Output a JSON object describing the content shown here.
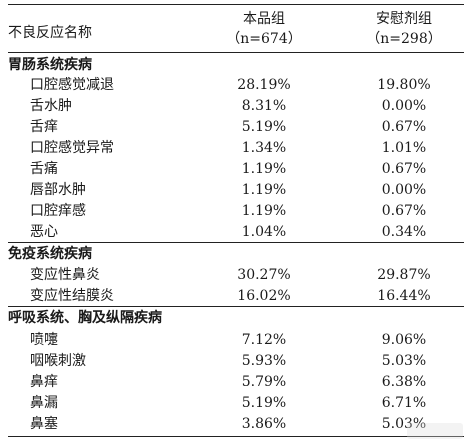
{
  "header": {
    "col1": "不良反应名称",
    "col2_line1": "本品组",
    "col2_line2": "（n=674）",
    "col3_line1": "安慰剂组",
    "col3_line2": "（n=298）"
  },
  "sections": [
    {
      "title": "胃肠系统疾病",
      "rows": [
        {
          "name": "口腔感觉减退",
          "drug": "28.19%",
          "placebo": "19.80%"
        },
        {
          "name": "舌水肿",
          "drug": "8.31%",
          "placebo": "0.00%"
        },
        {
          "name": "舌痒",
          "drug": "5.19%",
          "placebo": "0.67%"
        },
        {
          "name": "口腔感觉异常",
          "drug": "1.34%",
          "placebo": "1.01%"
        },
        {
          "name": "舌痛",
          "drug": "1.19%",
          "placebo": "0.67%"
        },
        {
          "name": "唇部水肿",
          "drug": "1.19%",
          "placebo": "0.00%"
        },
        {
          "name": "口腔痒感",
          "drug": "1.19%",
          "placebo": "0.67%"
        },
        {
          "name": "恶心",
          "drug": "1.04%",
          "placebo": "0.34%"
        }
      ]
    },
    {
      "title": "免疫系统疾病",
      "rows": [
        {
          "name": "变应性鼻炎",
          "drug": "30.27%",
          "placebo": "29.87%"
        },
        {
          "name": "变应性结膜炎",
          "drug": "16.02%",
          "placebo": "16.44%"
        }
      ]
    },
    {
      "title": "呼吸系统、胸及纵隔疾病",
      "rows": [
        {
          "name": "喷嚏",
          "drug": "7.12%",
          "placebo": "9.06%"
        },
        {
          "name": "咽喉刺激",
          "drug": "5.93%",
          "placebo": "5.03%"
        },
        {
          "name": "鼻痒",
          "drug": "5.79%",
          "placebo": "6.38%"
        },
        {
          "name": "鼻漏",
          "drug": "5.19%",
          "placebo": "6.71%"
        },
        {
          "name": "鼻塞",
          "drug": "3.86%",
          "placebo": "5.03%"
        }
      ]
    }
  ]
}
